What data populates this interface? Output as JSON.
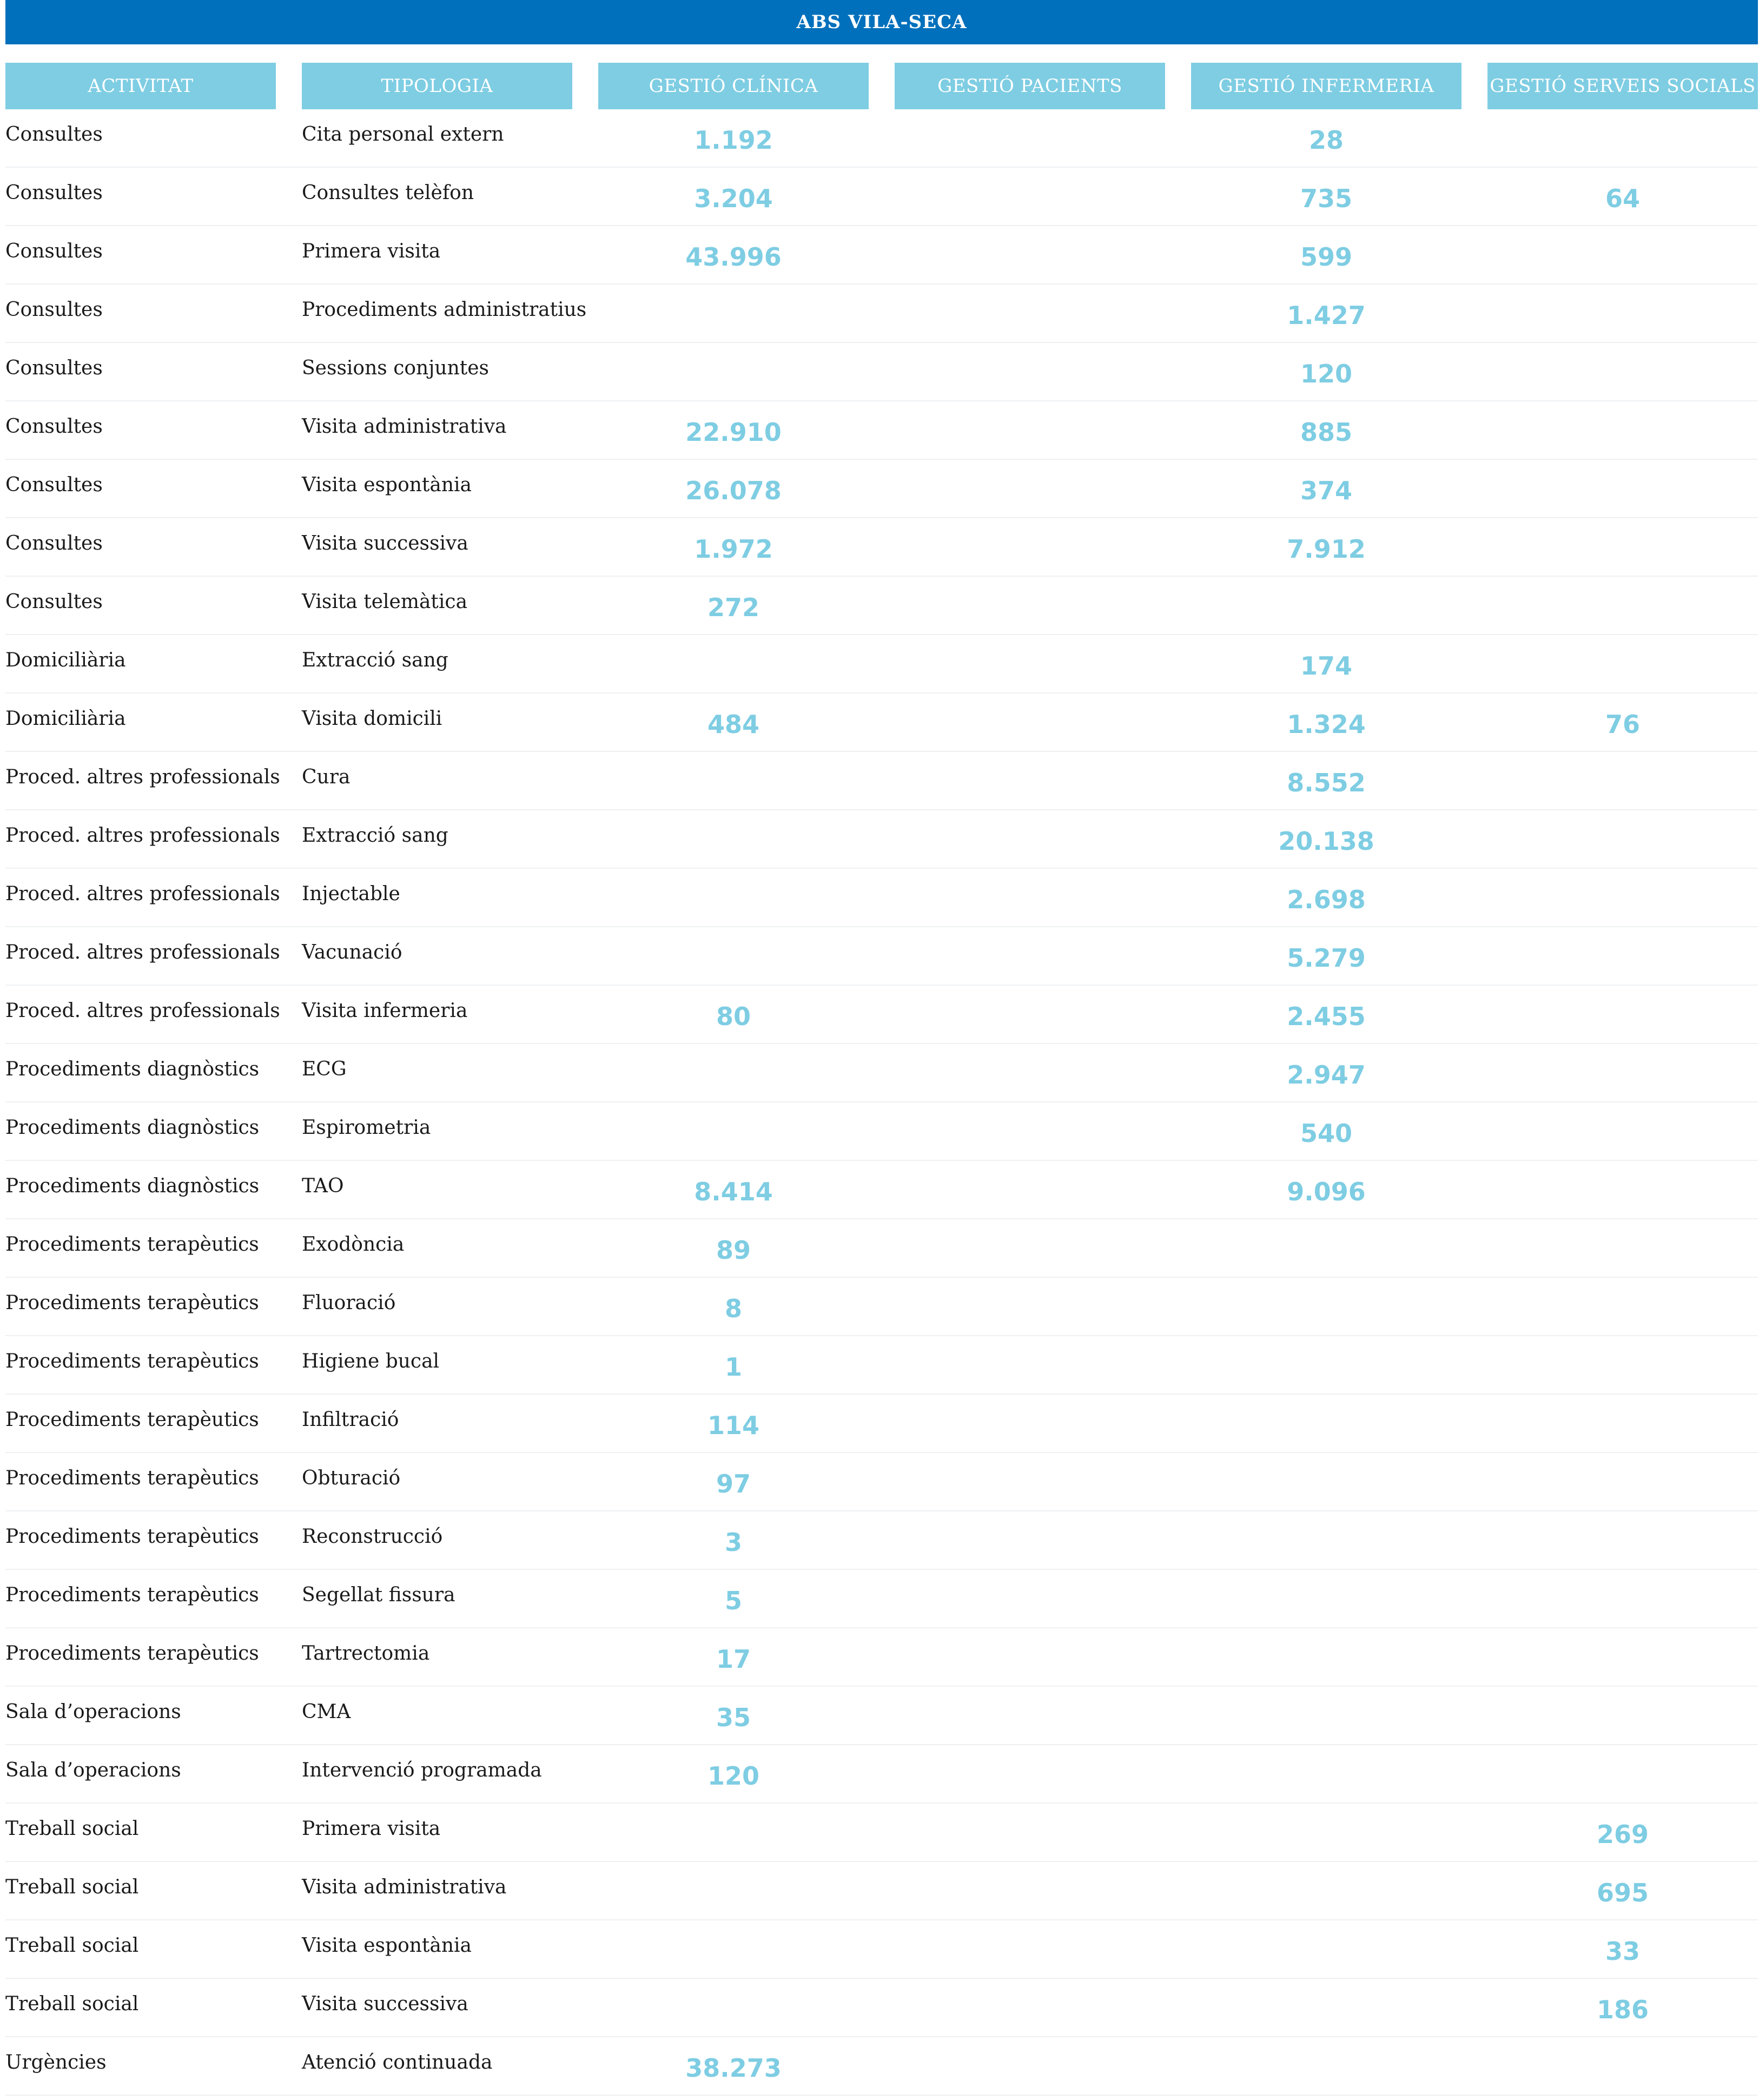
{
  "title": "ABS VILA-SECA",
  "colors": {
    "banner": "#0070bc",
    "header": "#7ecde3",
    "number": "#7ecde3"
  },
  "columns": [
    "ACTIVITAT",
    "TIPOLOGIA",
    "GESTIÓ CLÍNICA",
    "GESTIÓ PACIENTS",
    "GESTIÓ INFERMERIA",
    "GESTIÓ SERVEIS SOCIALS"
  ],
  "rows": [
    {
      "activitat": "Consultes",
      "tipologia": "Cita personal extern",
      "clinica": "1.192",
      "pacients": "",
      "infermeria": "28",
      "socials": ""
    },
    {
      "activitat": "Consultes",
      "tipologia": "Consultes telèfon",
      "clinica": "3.204",
      "pacients": "",
      "infermeria": "735",
      "socials": "64"
    },
    {
      "activitat": "Consultes",
      "tipologia": "Primera visita",
      "clinica": "43.996",
      "pacients": "",
      "infermeria": "599",
      "socials": ""
    },
    {
      "activitat": "Consultes",
      "tipologia": "Procediments administratius",
      "clinica": "",
      "pacients": "",
      "infermeria": "1.427",
      "socials": ""
    },
    {
      "activitat": "Consultes",
      "tipologia": "Sessions conjuntes",
      "clinica": "",
      "pacients": "",
      "infermeria": "120",
      "socials": ""
    },
    {
      "activitat": "Consultes",
      "tipologia": "Visita administrativa",
      "clinica": "22.910",
      "pacients": "",
      "infermeria": "885",
      "socials": ""
    },
    {
      "activitat": "Consultes",
      "tipologia": "Visita espontània",
      "clinica": "26.078",
      "pacients": "",
      "infermeria": "374",
      "socials": ""
    },
    {
      "activitat": "Consultes",
      "tipologia": "Visita successiva",
      "clinica": "1.972",
      "pacients": "",
      "infermeria": "7.912",
      "socials": ""
    },
    {
      "activitat": "Consultes",
      "tipologia": "Visita telemàtica",
      "clinica": "272",
      "pacients": "",
      "infermeria": "",
      "socials": ""
    },
    {
      "activitat": "Domiciliària",
      "tipologia": "Extracció sang",
      "clinica": "",
      "pacients": "",
      "infermeria": "174",
      "socials": ""
    },
    {
      "activitat": "Domiciliària",
      "tipologia": "Visita domicili",
      "clinica": "484",
      "pacients": "",
      "infermeria": "1.324",
      "socials": "76"
    },
    {
      "activitat": "Proced. altres professionals",
      "tipologia": "Cura",
      "clinica": "",
      "pacients": "",
      "infermeria": "8.552",
      "socials": ""
    },
    {
      "activitat": "Proced. altres professionals",
      "tipologia": "Extracció sang",
      "clinica": "",
      "pacients": "",
      "infermeria": "20.138",
      "socials": ""
    },
    {
      "activitat": "Proced. altres professionals",
      "tipologia": "Injectable",
      "clinica": "",
      "pacients": "",
      "infermeria": "2.698",
      "socials": ""
    },
    {
      "activitat": "Proced. altres professionals",
      "tipologia": "Vacunació",
      "clinica": "",
      "pacients": "",
      "infermeria": "5.279",
      "socials": ""
    },
    {
      "activitat": "Proced. altres professionals",
      "tipologia": "Visita infermeria",
      "clinica": "80",
      "pacients": "",
      "infermeria": "2.455",
      "socials": ""
    },
    {
      "activitat": "Procediments diagnòstics",
      "tipologia": "ECG",
      "clinica": "",
      "pacients": "",
      "infermeria": "2.947",
      "socials": ""
    },
    {
      "activitat": "Procediments diagnòstics",
      "tipologia": "Espirometria",
      "clinica": "",
      "pacients": "",
      "infermeria": "540",
      "socials": ""
    },
    {
      "activitat": "Procediments diagnòstics",
      "tipologia": "TAO",
      "clinica": "8.414",
      "pacients": "",
      "infermeria": "9.096",
      "socials": ""
    },
    {
      "activitat": "Procediments terapèutics",
      "tipologia": "Exodòncia",
      "clinica": "89",
      "pacients": "",
      "infermeria": "",
      "socials": ""
    },
    {
      "activitat": "Procediments terapèutics",
      "tipologia": "Fluoració",
      "clinica": "8",
      "pacients": "",
      "infermeria": "",
      "socials": ""
    },
    {
      "activitat": "Procediments terapèutics",
      "tipologia": "Higiene bucal",
      "clinica": "1",
      "pacients": "",
      "infermeria": "",
      "socials": ""
    },
    {
      "activitat": "Procediments terapèutics",
      "tipologia": "Infiltració",
      "clinica": "114",
      "pacients": "",
      "infermeria": "",
      "socials": ""
    },
    {
      "activitat": "Procediments terapèutics",
      "tipologia": "Obturació",
      "clinica": "97",
      "pacients": "",
      "infermeria": "",
      "socials": ""
    },
    {
      "activitat": "Procediments terapèutics",
      "tipologia": "Reconstrucció",
      "clinica": "3",
      "pacients": "",
      "infermeria": "",
      "socials": ""
    },
    {
      "activitat": "Procediments terapèutics",
      "tipologia": "Segellat fissura",
      "clinica": "5",
      "pacients": "",
      "infermeria": "",
      "socials": ""
    },
    {
      "activitat": "Procediments terapèutics",
      "tipologia": "Tartrectomia",
      "clinica": "17",
      "pacients": "",
      "infermeria": "",
      "socials": ""
    },
    {
      "activitat": "Sala d’operacions",
      "tipologia": "CMA",
      "clinica": "35",
      "pacients": "",
      "infermeria": "",
      "socials": ""
    },
    {
      "activitat": "Sala d’operacions",
      "tipologia": "Intervenció programada",
      "clinica": "120",
      "pacients": "",
      "infermeria": "",
      "socials": ""
    },
    {
      "activitat": "Treball social",
      "tipologia": "Primera visita",
      "clinica": "",
      "pacients": "",
      "infermeria": "",
      "socials": "269"
    },
    {
      "activitat": "Treball social",
      "tipologia": "Visita administrativa",
      "clinica": "",
      "pacients": "",
      "infermeria": "",
      "socials": "695"
    },
    {
      "activitat": "Treball social",
      "tipologia": "Visita espontània",
      "clinica": "",
      "pacients": "",
      "infermeria": "",
      "socials": "33"
    },
    {
      "activitat": "Treball social",
      "tipologia": "Visita successiva",
      "clinica": "",
      "pacients": "",
      "infermeria": "",
      "socials": "186"
    },
    {
      "activitat": "Urgències",
      "tipologia": "Atenció continuada",
      "clinica": "38.273",
      "pacients": "",
      "infermeria": "",
      "socials": ""
    }
  ]
}
